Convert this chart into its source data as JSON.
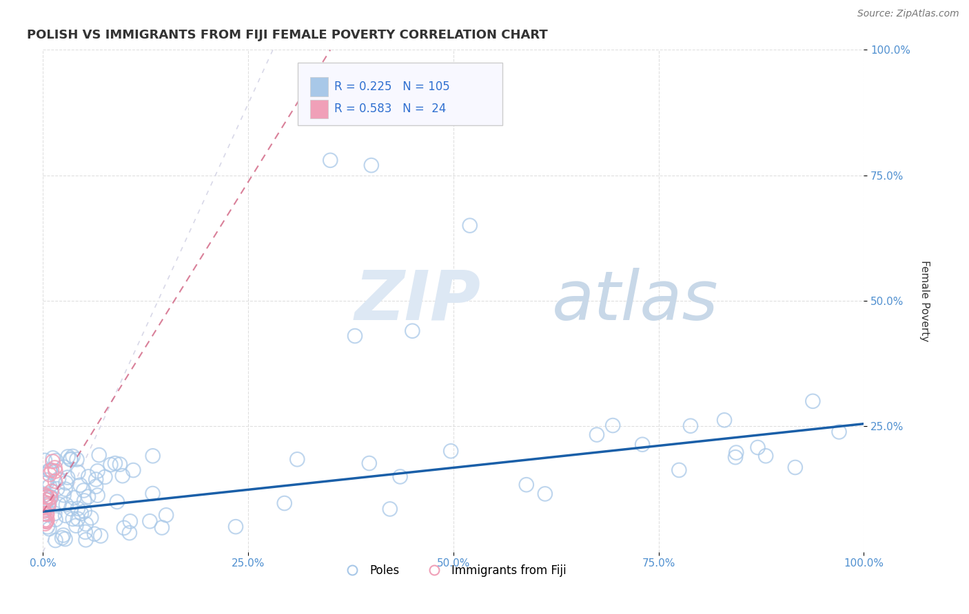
{
  "title": "POLISH VS IMMIGRANTS FROM FIJI FEMALE POVERTY CORRELATION CHART",
  "source_text": "Source: ZipAtlas.com",
  "ylabel": "Female Poverty",
  "xlim": [
    0,
    1
  ],
  "ylim": [
    0,
    1
  ],
  "xticks": [
    0,
    0.25,
    0.5,
    0.75,
    1.0
  ],
  "yticks": [
    0.25,
    0.5,
    0.75,
    1.0
  ],
  "xticklabels": [
    "0.0%",
    "25.0%",
    "50.0%",
    "75.0%",
    "100.0%"
  ],
  "yticklabels": [
    "25.0%",
    "50.0%",
    "75.0%",
    "100.0%"
  ],
  "blue_color": "#a8c8e8",
  "pink_color": "#f0a0b8",
  "blue_line_color": "#1a5fa8",
  "pink_line_color": "#d06080",
  "diag_color": "#d8d8e8",
  "title_color": "#333333",
  "title_fontsize": 13,
  "tick_color": "#5090d0",
  "R_color": "#3070d0",
  "legend_box_color": "#f8f8ff",
  "legend_border_color": "#cccccc",
  "watermark_zip_color": "#dde8f4",
  "watermark_atlas_color": "#c8d8e8",
  "background_color": "#ffffff",
  "blue_trend_start_x": 0.0,
  "blue_trend_start_y": 0.08,
  "blue_trend_end_x": 1.0,
  "blue_trend_end_y": 0.255,
  "pink_trend_start_x": 0.0,
  "pink_trend_start_y": 0.08,
  "pink_trend_end_x": 0.35,
  "pink_trend_end_y": 1.0
}
